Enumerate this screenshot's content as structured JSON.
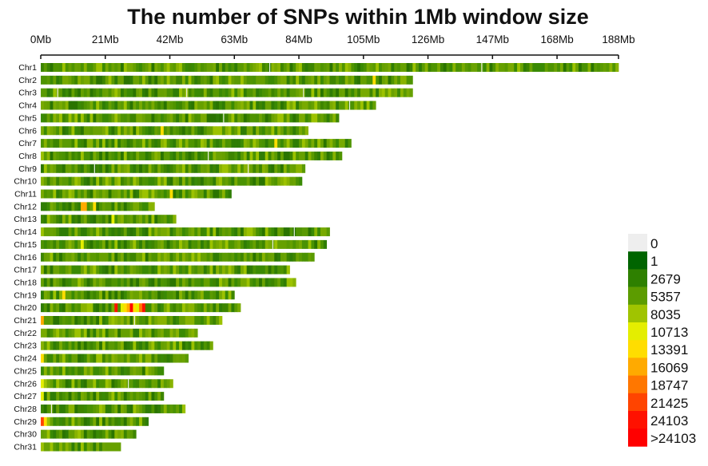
{
  "chart_data": {
    "type": "heatmap",
    "title": "The number of SNPs within 1Mb window size",
    "xlabel": "",
    "ylabel": "",
    "x_unit": "Mb",
    "xlim": [
      0,
      188
    ],
    "x_ticks": [
      0,
      21,
      42,
      63,
      84,
      105,
      126,
      147,
      168,
      188
    ],
    "x_tick_labels": [
      "0Mb",
      "21Mb",
      "42Mb",
      "63Mb",
      "84Mb",
      "105Mb",
      "126Mb",
      "147Mb",
      "168Mb",
      "188Mb"
    ],
    "chromosomes": [
      {
        "name": "Chr1",
        "length_mb": 188,
        "hotspots": [],
        "gaps": [
          74,
          143
        ]
      },
      {
        "name": "Chr2",
        "length_mb": 121,
        "hotspots": [
          {
            "pos": 108,
            "level": 6
          }
        ],
        "gaps": []
      },
      {
        "name": "Chr3",
        "length_mb": 121,
        "hotspots": [],
        "gaps": [
          5,
          47,
          85
        ]
      },
      {
        "name": "Chr4",
        "length_mb": 109,
        "hotspots": [],
        "gaps": [
          100
        ]
      },
      {
        "name": "Chr5",
        "length_mb": 97,
        "hotspots": [],
        "gaps": [
          59
        ]
      },
      {
        "name": "Chr6",
        "length_mb": 87,
        "hotspots": [
          {
            "pos": 39,
            "level": 6
          }
        ],
        "gaps": []
      },
      {
        "name": "Chr7",
        "length_mb": 101,
        "hotspots": [
          {
            "pos": 76,
            "level": 6
          }
        ],
        "gaps": []
      },
      {
        "name": "Chr8",
        "length_mb": 98,
        "hotspots": [],
        "gaps": [
          54
        ]
      },
      {
        "name": "Chr9",
        "length_mb": 86,
        "hotspots": [],
        "gaps": [
          17,
          67
        ]
      },
      {
        "name": "Chr10",
        "length_mb": 85,
        "hotspots": [],
        "gaps": []
      },
      {
        "name": "Chr11",
        "length_mb": 62,
        "hotspots": [
          {
            "pos": 42,
            "level": 6
          }
        ],
        "gaps": []
      },
      {
        "name": "Chr12",
        "length_mb": 37,
        "hotspots": [
          {
            "pos": 13,
            "level": 7
          },
          {
            "pos": 14,
            "level": 7
          },
          {
            "pos": 17,
            "level": 6
          }
        ],
        "gaps": []
      },
      {
        "name": "Chr13",
        "length_mb": 44,
        "hotspots": [
          {
            "pos": 23,
            "level": 5
          }
        ],
        "gaps": []
      },
      {
        "name": "Chr14",
        "length_mb": 94,
        "hotspots": [],
        "gaps": [
          82
        ]
      },
      {
        "name": "Chr15",
        "length_mb": 93,
        "hotspots": [
          {
            "pos": 13,
            "level": 5
          }
        ],
        "gaps": [
          75
        ]
      },
      {
        "name": "Chr16",
        "length_mb": 89,
        "hotspots": [],
        "gaps": []
      },
      {
        "name": "Chr17",
        "length_mb": 81,
        "hotspots": [],
        "gaps": []
      },
      {
        "name": "Chr18",
        "length_mb": 83,
        "hotspots": [],
        "gaps": []
      },
      {
        "name": "Chr19",
        "length_mb": 63,
        "hotspots": [
          {
            "pos": 7,
            "level": 6
          }
        ],
        "gaps": []
      },
      {
        "name": "Chr20",
        "length_mb": 65,
        "hotspots": [
          {
            "pos": 24,
            "level": 10
          },
          {
            "pos": 26,
            "level": 5
          },
          {
            "pos": 27,
            "level": 6
          },
          {
            "pos": 28,
            "level": 7
          },
          {
            "pos": 29,
            "level": 11
          },
          {
            "pos": 30,
            "level": 6
          },
          {
            "pos": 31,
            "level": 5
          },
          {
            "pos": 32,
            "level": 8
          },
          {
            "pos": 33,
            "level": 10
          }
        ],
        "gaps": []
      },
      {
        "name": "Chr21",
        "length_mb": 59,
        "hotspots": [
          {
            "pos": 0,
            "level": 7
          }
        ],
        "gaps": [
          30
        ]
      },
      {
        "name": "Chr22",
        "length_mb": 51,
        "hotspots": [],
        "gaps": []
      },
      {
        "name": "Chr23",
        "length_mb": 56,
        "hotspots": [],
        "gaps": []
      },
      {
        "name": "Chr24",
        "length_mb": 48,
        "hotspots": [
          {
            "pos": 0,
            "level": 6
          }
        ],
        "gaps": []
      },
      {
        "name": "Chr25",
        "length_mb": 40,
        "hotspots": [],
        "gaps": []
      },
      {
        "name": "Chr26",
        "length_mb": 43,
        "hotspots": [
          {
            "pos": 0,
            "level": 5
          }
        ],
        "gaps": [
          28
        ]
      },
      {
        "name": "Chr27",
        "length_mb": 40,
        "hotspots": [
          {
            "pos": 0,
            "level": 5
          }
        ],
        "gaps": []
      },
      {
        "name": "Chr28",
        "length_mb": 47,
        "hotspots": [],
        "gaps": [
          3
        ]
      },
      {
        "name": "Chr29",
        "length_mb": 35,
        "hotspots": [
          {
            "pos": 0,
            "level": 9
          },
          {
            "pos": 1,
            "level": 6
          }
        ],
        "gaps": []
      },
      {
        "name": "Chr30",
        "length_mb": 31,
        "hotspots": [],
        "gaps": []
      },
      {
        "name": "Chr31",
        "length_mb": 26,
        "hotspots": [],
        "gaps": []
      }
    ],
    "legend": {
      "position": "bottom-right",
      "entries": [
        {
          "label": "0",
          "color": "#eeeeee"
        },
        {
          "label": "1",
          "color": "#006400"
        },
        {
          "label": "2679",
          "color": "#2e8000"
        },
        {
          "label": "5357",
          "color": "#5c9c00"
        },
        {
          "label": "8035",
          "color": "#a0c400"
        },
        {
          "label": "10713",
          "color": "#e4ee00"
        },
        {
          "label": "13391",
          "color": "#ffdd00"
        },
        {
          "label": "16069",
          "color": "#ffaa00"
        },
        {
          "label": "18747",
          "color": "#ff7700"
        },
        {
          "label": "21425",
          "color": "#ff4400"
        },
        {
          "label": "24103",
          "color": "#ff1100"
        },
        {
          "label": ">24103",
          "color": "#ff0000"
        }
      ]
    }
  }
}
